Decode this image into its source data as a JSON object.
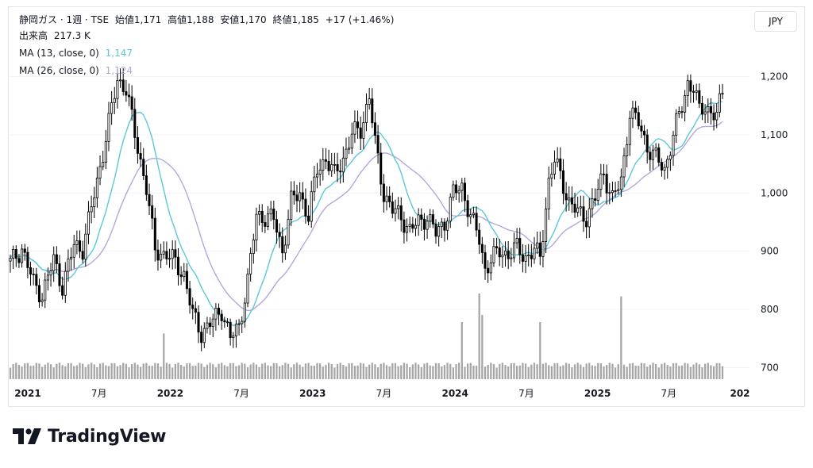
{
  "legend": {
    "symbol": "静岡ガス · 1週 · TSE",
    "open_label": "始値",
    "open": "1,171",
    "high_label": "高値",
    "high": "1,188",
    "low_label": "安値",
    "low": "1,170",
    "close_label": "終値",
    "close": "1,185",
    "change": "+17 (+1.46%)",
    "volume_label": "出来高",
    "volume": "217.3 K",
    "ma13_label": "MA (13, close, 0)",
    "ma13_value": "1,147",
    "ma26_label": "MA (26, close, 0)",
    "ma26_value": "1,124"
  },
  "currency_button": "JPY",
  "brand": "TradingView",
  "colors": {
    "up": "#ffffff",
    "down": "#000000",
    "ma13": "#5bc8d8",
    "ma26": "#b5a6dc",
    "volume": "#888888",
    "grid": "#f0f3fa"
  },
  "chart_data": {
    "type": "candlestick",
    "title": "静岡ガス · 1週 · TSE",
    "ylim": [
      680,
      1250
    ],
    "y_ticks": [
      "1,200",
      "1,100",
      "1,000",
      "900",
      "800",
      "700"
    ],
    "y_tick_values": [
      1200,
      1100,
      1000,
      900,
      800,
      700
    ],
    "x_ticks": [
      {
        "label": "2021",
        "week": 0,
        "bold": true
      },
      {
        "label": "7月",
        "week": 26,
        "bold": false
      },
      {
        "label": "2022",
        "week": 52,
        "bold": true
      },
      {
        "label": "7月",
        "week": 78,
        "bold": false
      },
      {
        "label": "2023",
        "week": 104,
        "bold": true
      },
      {
        "label": "7月",
        "week": 130,
        "bold": false
      },
      {
        "label": "2024",
        "week": 156,
        "bold": true
      },
      {
        "label": "7月",
        "week": 182,
        "bold": false
      },
      {
        "label": "2025",
        "week": 208,
        "bold": true
      },
      {
        "label": "7月",
        "week": 234,
        "bold": false
      },
      {
        "label": "202",
        "week": 260,
        "bold": true
      }
    ],
    "anchors": [
      [
        0,
        880
      ],
      [
        4,
        905
      ],
      [
        8,
        845
      ],
      [
        11,
        825
      ],
      [
        15,
        885
      ],
      [
        18,
        840
      ],
      [
        22,
        910
      ],
      [
        25,
        905
      ],
      [
        30,
        1020
      ],
      [
        34,
        1120
      ],
      [
        37,
        1195
      ],
      [
        40,
        1180
      ],
      [
        43,
        1100
      ],
      [
        47,
        1010
      ],
      [
        50,
        900
      ],
      [
        54,
        895
      ],
      [
        57,
        880
      ],
      [
        60,
        860
      ],
      [
        63,
        790
      ],
      [
        66,
        760
      ],
      [
        70,
        780
      ],
      [
        73,
        800
      ],
      [
        76,
        750
      ],
      [
        79,
        770
      ],
      [
        82,
        850
      ],
      [
        85,
        960
      ],
      [
        88,
        960
      ],
      [
        91,
        955
      ],
      [
        94,
        900
      ],
      [
        97,
        985
      ],
      [
        100,
        1000
      ],
      [
        103,
        960
      ],
      [
        106,
        1040
      ],
      [
        109,
        1060
      ],
      [
        112,
        1030
      ],
      [
        115,
        1060
      ],
      [
        118,
        1100
      ],
      [
        121,
        1110
      ],
      [
        124,
        1165
      ],
      [
        126,
        1085
      ],
      [
        129,
        1000
      ],
      [
        132,
        970
      ],
      [
        135,
        960
      ],
      [
        138,
        935
      ],
      [
        141,
        950
      ],
      [
        144,
        960
      ],
      [
        147,
        930
      ],
      [
        150,
        950
      ],
      [
        153,
        1000
      ],
      [
        156,
        1010
      ],
      [
        159,
        960
      ],
      [
        162,
        920
      ],
      [
        164,
        870
      ],
      [
        166,
        885
      ],
      [
        169,
        900
      ],
      [
        172,
        895
      ],
      [
        175,
        905
      ],
      [
        178,
        890
      ],
      [
        181,
        900
      ],
      [
        183,
        890
      ],
      [
        186,
        1020
      ],
      [
        188,
        1055
      ],
      [
        190,
        1030
      ],
      [
        193,
        985
      ],
      [
        196,
        965
      ],
      [
        199,
        960
      ],
      [
        202,
        990
      ],
      [
        205,
        1035
      ],
      [
        208,
        990
      ],
      [
        211,
        1020
      ],
      [
        214,
        1140
      ],
      [
        217,
        1120
      ],
      [
        220,
        1080
      ],
      [
        223,
        1060
      ],
      [
        226,
        1040
      ],
      [
        229,
        1100
      ],
      [
        232,
        1150
      ],
      [
        234,
        1190
      ],
      [
        236,
        1180
      ],
      [
        238,
        1140
      ],
      [
        240,
        1150
      ],
      [
        242,
        1140
      ],
      [
        244,
        1130
      ],
      [
        246,
        1175
      ]
    ],
    "volume_spikes": [
      [
        53,
        3.2
      ],
      [
        162,
        6.0
      ],
      [
        163,
        4.5
      ],
      [
        183,
        4.0
      ],
      [
        211,
        5.8
      ],
      [
        156,
        4.0
      ]
    ]
  }
}
